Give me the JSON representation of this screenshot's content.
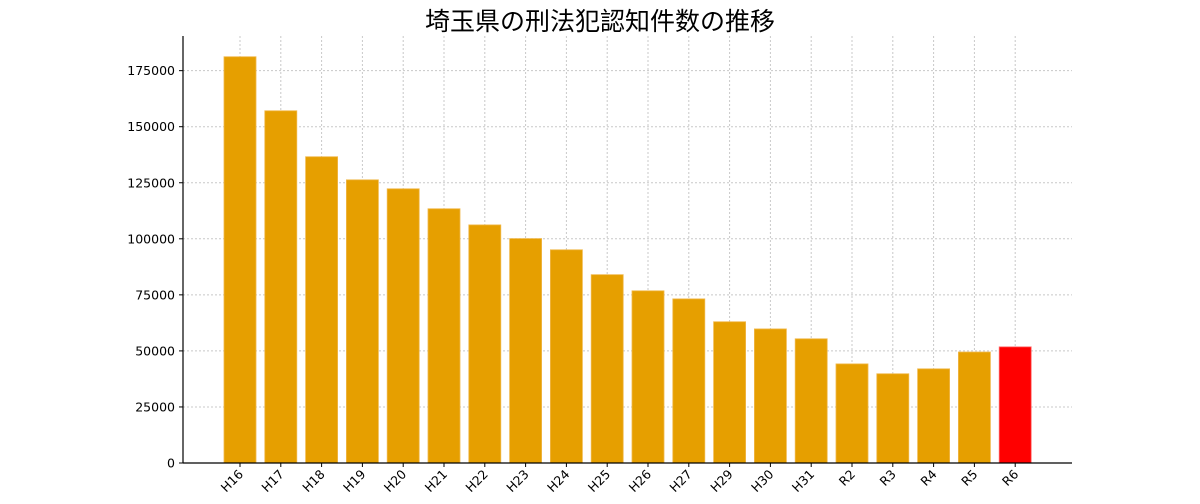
{
  "chart_data": {
    "type": "bar",
    "title": "埼玉県の刑法犯認知件数の推移",
    "xlabel": "",
    "ylabel": "",
    "categories": [
      "H16",
      "H17",
      "H18",
      "H19",
      "H20",
      "H21",
      "H22",
      "H23",
      "H24",
      "H25",
      "H26",
      "H27",
      "H29",
      "H30",
      "H31",
      "R2",
      "R3",
      "R4",
      "R5",
      "R6"
    ],
    "values": [
      181200,
      157100,
      136600,
      126300,
      122300,
      113400,
      106200,
      100100,
      95100,
      84000,
      76800,
      73200,
      63000,
      59800,
      55400,
      44200,
      39800,
      42000,
      49500,
      51800
    ],
    "ylim": [
      0,
      190000
    ],
    "yticks": [
      0,
      25000,
      50000,
      75000,
      100000,
      125000,
      150000,
      175000
    ],
    "grid": true,
    "colors": {
      "default": "#E69F00",
      "highlight": "#FF0000"
    },
    "highlight_index": 19
  }
}
